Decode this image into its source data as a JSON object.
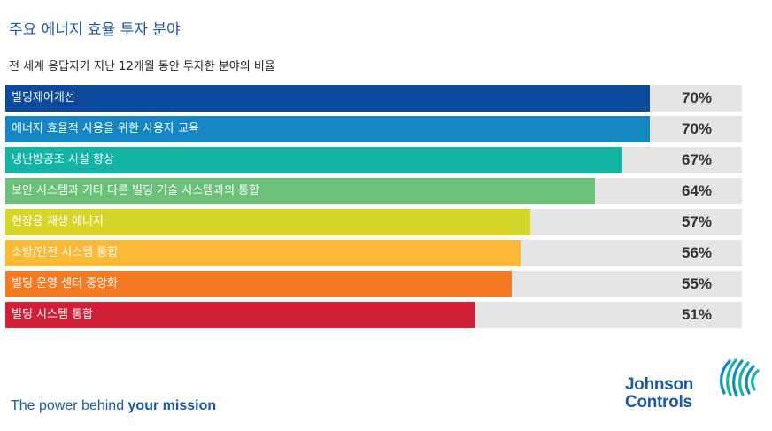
{
  "header": {
    "title": "주요 에너지 효율 투자 분야",
    "subtitle": "전 세계 응답자가 지난 12개월 동안 투자한 분야의 비율"
  },
  "chart_data": {
    "type": "bar",
    "orientation": "horizontal",
    "categories": [
      "빌딩제어개선",
      "에너지 효율적 사용을 위한 사용자 교육",
      "냉난방공조 시설 향상",
      "보안 시스템과 기타 다른 빌딩 기술 시스템과의 통합",
      "현장용 재생 에너지",
      "소방/안전 시스템 통합",
      "빌딩 운영 센터 중앙화",
      "빌딩 시스템 통합"
    ],
    "values": [
      70,
      70,
      67,
      64,
      57,
      56,
      55,
      51
    ],
    "value_labels": [
      "70%",
      "70%",
      "67%",
      "64%",
      "57%",
      "56%",
      "55%",
      "51%"
    ],
    "colors": [
      "#0d4a9c",
      "#1486c4",
      "#15b3a3",
      "#6cc17a",
      "#d5d62a",
      "#fbb937",
      "#f47a24",
      "#cf2038"
    ],
    "xlim": [
      0,
      100
    ],
    "grid": false
  },
  "footer": {
    "tagline_prefix": "The power behind ",
    "tagline_bold": "your mission",
    "logo_line1": "Johnson",
    "logo_line2": "Controls"
  }
}
